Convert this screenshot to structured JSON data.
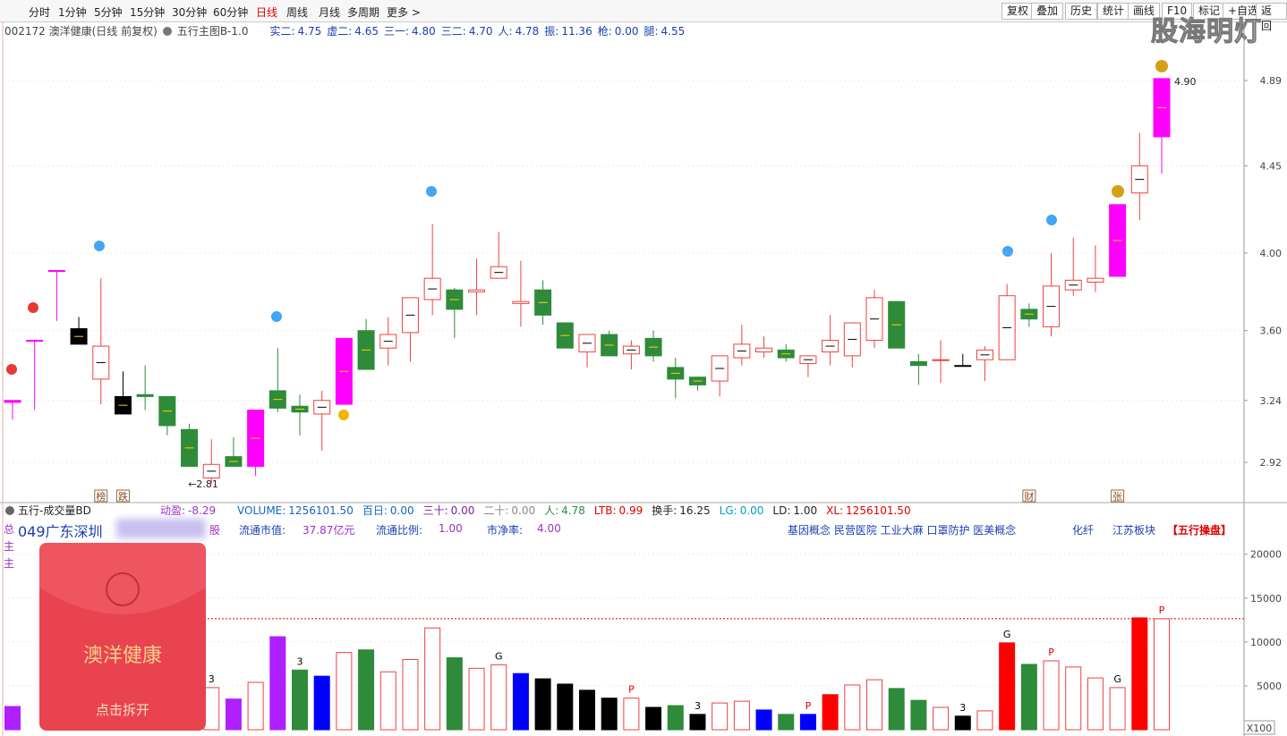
{
  "toolbar": {
    "periods": [
      "分时",
      "1分钟",
      "5分钟",
      "15分钟",
      "30分钟",
      "60分钟",
      "日线",
      "周线",
      "月线",
      "多周期",
      "更多 >"
    ],
    "active": "日线",
    "buttons": [
      "复权",
      "叠加",
      "历史",
      "统计",
      "画线",
      "F10",
      "标记",
      "+自选",
      "返回"
    ]
  },
  "watermark": "股海明灯",
  "info": {
    "code": "002172 澳洋健康(日线 前复权)",
    "indicator": "五行主图B-1.0",
    "items": [
      {
        "label": "实二:",
        "value": "4.75"
      },
      {
        "label": "虚二:",
        "value": "4.65"
      },
      {
        "label": "三一:",
        "value": "4.80"
      },
      {
        "label": "三二:",
        "value": "4.70"
      },
      {
        "label": "人:",
        "value": "4.78"
      },
      {
        "label": "振:",
        "value": "11.36"
      },
      {
        "label": "枪:",
        "value": "0.00"
      },
      {
        "label": "腿:",
        "value": "4.55"
      }
    ]
  },
  "volume_header": {
    "title": "五行-成交量BD",
    "items": [
      {
        "label": "动盈:",
        "value": "-8.29",
        "color": "#9b30c8"
      },
      {
        "label": "VOLUME:",
        "value": "1256101.50",
        "color": "#1565c0"
      },
      {
        "label": "百日:",
        "value": "0.00",
        "color": "#1565c0"
      },
      {
        "label": "三十:",
        "value": "0.00",
        "color": "#7b1fa2"
      },
      {
        "label": "二十:",
        "value": "0.00",
        "color": "#888888"
      },
      {
        "label": "人:",
        "value": "4.78",
        "color": "#2e8b3a"
      },
      {
        "label": "LTB:",
        "value": "0.99",
        "color": "#e00000"
      },
      {
        "label": "换手:",
        "value": "16.25",
        "color": "#222222"
      },
      {
        "label": "LG:",
        "value": "0.00",
        "color": "#00a0c0"
      },
      {
        "label": "LD:",
        "value": "1.00",
        "color": "#222222"
      },
      {
        "label": "XL:",
        "value": "1256101.50",
        "color": "#e00000"
      }
    ]
  },
  "stock_info": {
    "region": "049广东深圳",
    "shares_unit": "股",
    "items": [
      {
        "label": "流通市值:",
        "value": "37.87亿元"
      },
      {
        "label": "流通比例:",
        "value": "1.00"
      },
      {
        "label": "市净率:",
        "value": "4.00"
      }
    ],
    "concepts": "基因概念 民营医院 工业大麻 口罩防护 医美概念",
    "industry": "化纤",
    "board": "江苏板块",
    "tag": "【五行操盘】"
  },
  "side_labels": [
    "总",
    "主",
    "主"
  ],
  "red_packet": {
    "title": "澳洋健康",
    "action": "点击拆开"
  },
  "chart_data": [
    {
      "type": "candlestick",
      "categories": [
        null,
        null,
        null,
        null,
        null,
        null,
        null,
        null,
        null,
        null,
        null,
        null,
        null,
        null,
        null,
        null,
        null,
        null,
        null,
        null,
        null,
        null,
        null,
        null,
        null,
        null,
        null,
        null,
        null,
        null,
        null,
        null,
        null,
        null,
        null,
        null,
        null,
        null,
        null,
        null,
        null,
        null,
        null,
        null,
        null,
        null,
        null,
        null,
        null,
        null,
        null,
        null,
        null
      ],
      "open": [
        3.23,
        3.55,
        3.91,
        3.61,
        3.35,
        3.26,
        3.27,
        3.26,
        3.09,
        2.84,
        2.95,
        2.9,
        3.29,
        3.21,
        3.17,
        3.22,
        3.6,
        3.51,
        3.59,
        3.76,
        3.81,
        3.8,
        3.87,
        3.74,
        3.81,
        3.64,
        3.49,
        3.58,
        3.48,
        3.56,
        3.41,
        3.36,
        3.34,
        3.46,
        3.49,
        3.5,
        3.43,
        3.49,
        3.47,
        3.55,
        3.75,
        3.44,
        3.45,
        3.42,
        3.45,
        3.45,
        3.71,
        3.62,
        3.81,
        3.85,
        3.88,
        4.31,
        4.6
      ],
      "high": [
        3.24,
        3.55,
        3.91,
        3.67,
        3.87,
        3.39,
        3.42,
        3.26,
        3.12,
        3.04,
        3.05,
        3.19,
        3.51,
        3.27,
        3.29,
        3.56,
        3.66,
        3.67,
        3.77,
        4.15,
        3.82,
        3.97,
        4.11,
        3.96,
        3.86,
        3.64,
        3.58,
        3.6,
        3.55,
        3.6,
        3.46,
        3.36,
        3.47,
        3.63,
        3.57,
        3.53,
        3.47,
        3.68,
        3.64,
        3.81,
        3.75,
        3.48,
        3.55,
        3.48,
        3.52,
        3.84,
        3.74,
        4.0,
        4.08,
        4.04,
        4.25,
        4.62,
        4.9
      ],
      "low": [
        3.14,
        3.19,
        3.65,
        3.53,
        3.22,
        3.17,
        3.19,
        3.06,
        2.9,
        2.81,
        2.9,
        2.85,
        3.18,
        3.06,
        2.98,
        3.22,
        3.4,
        3.42,
        3.44,
        3.68,
        3.56,
        3.68,
        3.87,
        3.62,
        3.63,
        3.51,
        3.41,
        3.47,
        3.4,
        3.44,
        3.25,
        3.29,
        3.26,
        3.42,
        3.46,
        3.44,
        3.36,
        3.42,
        3.41,
        3.51,
        3.51,
        3.32,
        3.33,
        3.42,
        3.34,
        3.45,
        3.62,
        3.57,
        3.78,
        3.8,
        3.88,
        4.17,
        4.41
      ],
      "close": [
        3.24,
        3.55,
        3.91,
        3.53,
        3.52,
        3.17,
        3.26,
        3.11,
        2.9,
        2.91,
        2.9,
        3.19,
        3.2,
        3.18,
        3.24,
        3.56,
        3.4,
        3.58,
        3.77,
        3.87,
        3.71,
        3.81,
        3.93,
        3.75,
        3.68,
        3.51,
        3.58,
        3.47,
        3.52,
        3.47,
        3.35,
        3.32,
        3.47,
        3.53,
        3.51,
        3.46,
        3.47,
        3.55,
        3.64,
        3.77,
        3.51,
        3.42,
        3.45,
        3.42,
        3.5,
        3.78,
        3.66,
        3.83,
        3.86,
        3.87,
        4.25,
        4.45,
        4.9
      ],
      "colors": [
        "#ff00ff",
        "#ff00ff",
        "#ff00ff",
        "#000000",
        "#f04040",
        "#000000",
        "#2e8b3a",
        "#2e8b3a",
        "#2e8b3a",
        "#f04040",
        "#2e8b3a",
        "#ff00ff",
        "#2e8b3a",
        "#2e8b3a",
        "#f04040",
        "#ff00ff",
        "#2e8b3a",
        "#f04040",
        "#f04040",
        "#f04040",
        "#2e8b3a",
        "#f04040",
        "#f04040",
        "#f04040",
        "#2e8b3a",
        "#2e8b3a",
        "#f04040",
        "#2e8b3a",
        "#f04040",
        "#2e8b3a",
        "#2e8b3a",
        "#2e8b3a",
        "#f04040",
        "#f04040",
        "#f04040",
        "#2e8b3a",
        "#f04040",
        "#f04040",
        "#f04040",
        "#f04040",
        "#2e8b3a",
        "#2e8b3a",
        "#f04040",
        "#000000",
        "#f04040",
        "#f04040",
        "#2e8b3a",
        "#f04040",
        "#f04040",
        "#f04040",
        "#ff00ff",
        "#f04040",
        "#ff00ff"
      ],
      "hollow": [
        false,
        false,
        false,
        false,
        true,
        false,
        false,
        false,
        false,
        true,
        false,
        false,
        false,
        false,
        true,
        false,
        false,
        true,
        true,
        true,
        false,
        true,
        true,
        true,
        false,
        false,
        true,
        false,
        true,
        false,
        false,
        false,
        true,
        true,
        true,
        false,
        true,
        true,
        true,
        true,
        false,
        false,
        true,
        false,
        true,
        true,
        false,
        true,
        true,
        true,
        false,
        true,
        false
      ],
      "price_labels": [
        {
          "label": "←2.81",
          "value": 2.81,
          "at": 9
        },
        {
          "label": "4.90",
          "value": 4.9,
          "at": 52
        }
      ],
      "event_icons": [
        {
          "text": "榜",
          "at": 4
        },
        {
          "text": "跌",
          "at": 5
        },
        {
          "text": "财",
          "at": 46
        },
        {
          "text": "张",
          "at": 50
        }
      ],
      "ylim": [
        2.713,
        5.167
      ],
      "yticks": [
        2.92,
        3.24,
        {
          "value": 3.6,
          "label": "3.60"
        },
        {
          "value": 4,
          "label": "4.00"
        },
        4.45,
        4.89
      ]
    },
    {
      "type": "bar",
      "categories": [
        null,
        null,
        null,
        null,
        null,
        null,
        null,
        null,
        null,
        null,
        null,
        null,
        null,
        null,
        null,
        null,
        null,
        null,
        null,
        null,
        null,
        null,
        null,
        null,
        null,
        null,
        null,
        null,
        null,
        null,
        null,
        null,
        null,
        null,
        null,
        null,
        null,
        null,
        null,
        null,
        null,
        null,
        null,
        null,
        null,
        null,
        null,
        null,
        null,
        null,
        null,
        null,
        null
      ],
      "values": [
        2650,
        null,
        null,
        null,
        null,
        null,
        null,
        null,
        null,
        4800,
        3500,
        5400,
        10600,
        6800,
        6100,
        8800,
        9100,
        6600,
        8000,
        11600,
        8200,
        7000,
        7400,
        6400,
        5800,
        5200,
        4500,
        3600,
        3600,
        2550,
        2750,
        1750,
        3050,
        3250,
        2250,
        1750,
        1750,
        4000,
        5100,
        5700,
        4700,
        3350,
        2550,
        1550,
        2150,
        9900,
        7450,
        7850,
        7150,
        5900,
        4800,
        12750,
        12650
      ],
      "colors": [
        "#b020ff",
        null,
        null,
        null,
        null,
        null,
        null,
        null,
        null,
        "#f04040",
        "#b020ff",
        "#f04040",
        "#b020ff",
        "#2e8b3a",
        "#0000ff",
        "#f04040",
        "#2e8b3a",
        "#f04040",
        "#f04040",
        "#f04040",
        "#2e8b3a",
        "#f04040",
        "#f04040",
        "#0000ff",
        "#000000",
        "#000000",
        "#000000",
        "#000000",
        "#f04040",
        "#000000",
        "#2e8b3a",
        "#000000",
        "#f04040",
        "#f04040",
        "#0000ff",
        "#2e8b3a",
        "#0000ff",
        "#ff0000",
        "#f04040",
        "#f04040",
        "#2e8b3a",
        "#2e8b3a",
        "#f04040",
        "#000000",
        "#f04040",
        "#ff0000",
        "#2e8b3a",
        "#f04040",
        "#f04040",
        "#f04040",
        "#f04040",
        "#ff0000",
        "#f04040"
      ],
      "hollow": [
        false,
        null,
        null,
        null,
        null,
        null,
        null,
        null,
        null,
        true,
        false,
        true,
        false,
        false,
        false,
        true,
        false,
        true,
        true,
        true,
        false,
        true,
        true,
        false,
        false,
        false,
        false,
        false,
        true,
        false,
        false,
        false,
        true,
        true,
        false,
        false,
        false,
        false,
        true,
        true,
        false,
        false,
        true,
        false,
        true,
        false,
        false,
        true,
        true,
        true,
        true,
        false,
        true
      ],
      "signals": [
        null,
        null,
        null,
        null,
        null,
        null,
        null,
        null,
        null,
        {
          "text": "3",
          "color": "#000000"
        },
        null,
        null,
        null,
        {
          "text": "3",
          "color": "#000000"
        },
        null,
        null,
        null,
        null,
        null,
        null,
        null,
        null,
        {
          "text": "G",
          "color": "#000000"
        },
        null,
        null,
        null,
        null,
        null,
        {
          "text": "P",
          "color": "#e00000"
        },
        null,
        null,
        {
          "text": "3",
          "color": "#000000"
        },
        null,
        null,
        null,
        null,
        {
          "text": "P",
          "color": "#e00000"
        },
        null,
        null,
        null,
        null,
        null,
        null,
        {
          "text": "3",
          "color": "#000000"
        },
        null,
        {
          "text": "G",
          "color": "#000000"
        },
        null,
        {
          "text": "P",
          "color": "#e00000"
        },
        null,
        null,
        {
          "text": "G",
          "color": "#000000"
        },
        null,
        {
          "text": "P",
          "color": "#e00000"
        }
      ],
      "ref_line": 12650,
      "unit": "X100",
      "ylim": [
        0,
        21400
      ],
      "yticks": [
        5000,
        10000,
        15000,
        20000
      ]
    }
  ]
}
